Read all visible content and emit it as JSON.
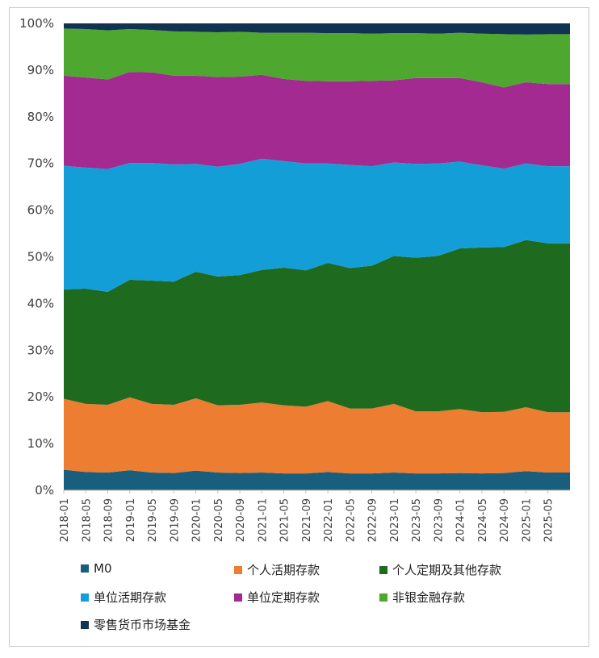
{
  "chart_data": {
    "type": "area",
    "stacked": true,
    "normalized_percent": true,
    "x": [
      "2018-01",
      "2018-05",
      "2018-09",
      "2019-01",
      "2019-05",
      "2019-09",
      "2020-01",
      "2020-05",
      "2020-09",
      "2021-01",
      "2021-05",
      "2021-09",
      "2022-01",
      "2022-05",
      "2022-09",
      "2023-01",
      "2023-05",
      "2023-09",
      "2024-01",
      "2024-05",
      "2024-09",
      "2025-01",
      "2025-05",
      "2025-07"
    ],
    "x_tick_labels": [
      "2018-01",
      "2018-05",
      "2018-09",
      "2019-01",
      "2019-05",
      "2019-09",
      "2020-01",
      "2020-05",
      "2020-09",
      "2021-01",
      "2021-05",
      "2021-09",
      "2022-01",
      "2022-05",
      "2022-09",
      "2023-01",
      "2023-05",
      "2023-09",
      "2024-01",
      "2024-05",
      "2024-09",
      "2025-01",
      "2025-05"
    ],
    "y_tick_labels": [
      "0%",
      "10%",
      "20%",
      "30%",
      "40%",
      "50%",
      "60%",
      "70%",
      "80%",
      "90%",
      "100%"
    ],
    "ylim": [
      0,
      100
    ],
    "grid": false,
    "legend_position": "bottom",
    "series": [
      {
        "name": "M0",
        "color": "#1a5e7e",
        "values": [
          4.4,
          3.9,
          3.8,
          4.3,
          3.8,
          3.7,
          4.2,
          3.8,
          3.7,
          3.8,
          3.6,
          3.6,
          3.9,
          3.6,
          3.6,
          3.8,
          3.6,
          3.6,
          3.7,
          3.6,
          3.7,
          4.1,
          3.8,
          3.8
        ]
      },
      {
        "name": "个人活期存款",
        "color": "#ed7d31",
        "values": [
          15.2,
          14.6,
          14.5,
          15.6,
          14.7,
          14.6,
          15.5,
          14.4,
          14.6,
          15.0,
          14.6,
          14.3,
          15.2,
          13.9,
          13.9,
          14.7,
          13.3,
          13.3,
          13.7,
          13.1,
          13.1,
          13.7,
          12.9,
          12.9
        ]
      },
      {
        "name": "个人定期及其他存款",
        "color": "#1e6b1f",
        "values": [
          23.4,
          24.7,
          24.2,
          25.2,
          26.4,
          26.4,
          27.1,
          27.6,
          27.8,
          28.4,
          29.5,
          29.2,
          29.6,
          30.1,
          30.6,
          31.7,
          32.9,
          33.3,
          34.4,
          35.3,
          35.3,
          35.8,
          36.2,
          36.2
        ]
      },
      {
        "name": "单位活期存款",
        "color": "#139ed8",
        "values": [
          26.5,
          25.9,
          26.3,
          25.0,
          25.2,
          25.1,
          23.1,
          23.5,
          23.8,
          23.8,
          22.8,
          22.9,
          21.3,
          22.1,
          21.3,
          20.0,
          20.1,
          19.8,
          18.6,
          17.6,
          16.8,
          16.4,
          16.5,
          16.5
        ]
      },
      {
        "name": "单位定期存款",
        "color": "#a22a91",
        "values": [
          19.3,
          19.3,
          19.2,
          19.5,
          19.4,
          19.0,
          18.9,
          19.2,
          18.7,
          18.0,
          17.6,
          17.7,
          17.6,
          17.9,
          18.3,
          17.6,
          18.4,
          18.3,
          17.9,
          17.8,
          17.4,
          17.4,
          17.6,
          17.6
        ]
      },
      {
        "name": "非银金融存款",
        "color": "#4ea72e",
        "values": [
          10.1,
          10.4,
          10.5,
          9.2,
          9.1,
          9.5,
          9.4,
          9.6,
          9.6,
          9.0,
          9.9,
          10.3,
          10.3,
          10.3,
          10.1,
          10.1,
          9.6,
          9.5,
          9.7,
          10.4,
          11.4,
          10.2,
          10.7,
          10.7
        ]
      },
      {
        "name": "零售货币市场基金",
        "color": "#0f3350",
        "values": [
          1.1,
          1.2,
          1.5,
          1.2,
          1.4,
          1.7,
          1.8,
          1.9,
          1.8,
          2.0,
          2.0,
          2.0,
          2.1,
          2.1,
          2.2,
          2.1,
          2.1,
          2.2,
          2.0,
          2.2,
          2.3,
          2.4,
          2.3,
          2.3
        ]
      }
    ]
  }
}
